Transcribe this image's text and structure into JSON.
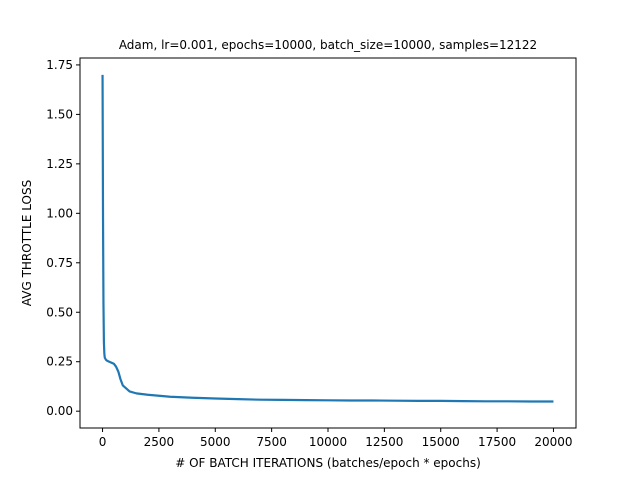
{
  "chart_data": {
    "type": "line",
    "title": "Adam, lr=0.001, epochs=10000, batch_size=10000, samples=12122",
    "xlabel": "# OF BATCH ITERATIONS (batches/epoch * epochs)",
    "ylabel": "AVG THROTTLE LOSS",
    "xlim": [
      -1000,
      21000
    ],
    "ylim": [
      -0.085,
      1.785
    ],
    "x_ticks": [
      0,
      2500,
      5000,
      7500,
      10000,
      12500,
      15000,
      17500,
      20000
    ],
    "y_ticks": [
      0.0,
      0.25,
      0.5,
      0.75,
      1.0,
      1.25,
      1.5,
      1.75
    ],
    "grid": false,
    "legend": "none",
    "series": [
      {
        "color": "#1f77b4",
        "x": [
          0,
          20,
          40,
          60,
          80,
          100,
          150,
          200,
          300,
          400,
          500,
          600,
          700,
          800,
          900,
          1000,
          1100,
          1200,
          1500,
          2000,
          2500,
          3000,
          4000,
          5000,
          6000,
          7000,
          8000,
          9000,
          10000,
          11000,
          12000,
          13000,
          14000,
          15000,
          16000,
          17000,
          18000,
          19000,
          20000
        ],
        "y": [
          1.7,
          1.0,
          0.55,
          0.35,
          0.29,
          0.27,
          0.26,
          0.255,
          0.25,
          0.245,
          0.24,
          0.225,
          0.2,
          0.16,
          0.13,
          0.12,
          0.11,
          0.1,
          0.09,
          0.083,
          0.078,
          0.073,
          0.068,
          0.064,
          0.061,
          0.058,
          0.057,
          0.056,
          0.055,
          0.054,
          0.054,
          0.053,
          0.052,
          0.052,
          0.051,
          0.05,
          0.05,
          0.049,
          0.049
        ]
      }
    ]
  }
}
